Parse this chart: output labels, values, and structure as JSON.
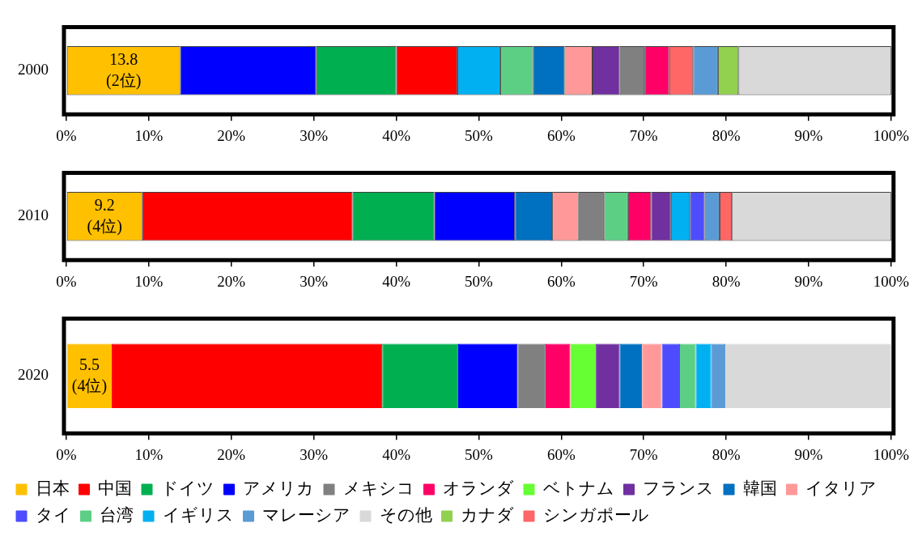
{
  "chart_data": [
    {
      "type": "bar",
      "orientation": "horizontal",
      "stacked": true,
      "categories": [
        "2000"
      ],
      "xlim": [
        0,
        100
      ],
      "xticks": [
        {
          "value": 0,
          "label": "0%"
        },
        {
          "value": 10,
          "label": "10%"
        },
        {
          "value": 20,
          "label": "20%"
        },
        {
          "value": 30,
          "label": "30%"
        },
        {
          "value": 40,
          "label": "40%"
        },
        {
          "value": 50,
          "label": "50%"
        },
        {
          "value": 60,
          "label": "60%"
        },
        {
          "value": 70,
          "label": "70%"
        },
        {
          "value": 80,
          "label": "80%"
        },
        {
          "value": 90,
          "label": "90%"
        },
        {
          "value": 100,
          "label": "100%"
        }
      ],
      "legend": false,
      "series": [
        {
          "color": "#ffc000",
          "values": [
            13.8
          ],
          "value_labels": [
            "13.8\n(2位)"
          ]
        },
        {
          "color": "#0000ff",
          "values": [
            16.5
          ]
        },
        {
          "color": "#00b050",
          "values": [
            9.7
          ]
        },
        {
          "color": "#ff0000",
          "values": [
            7.4
          ]
        },
        {
          "color": "#00b0f0",
          "values": [
            5.2
          ]
        },
        {
          "color": "#5ccf85",
          "values": [
            4.0
          ]
        },
        {
          "color": "#0070c0",
          "values": [
            3.8
          ]
        },
        {
          "color": "#ff9999",
          "values": [
            3.4
          ]
        },
        {
          "color": "#7030a0",
          "values": [
            3.3
          ]
        },
        {
          "color": "#808080",
          "values": [
            3.0
          ]
        },
        {
          "color": "#ff0066",
          "values": [
            3.0
          ]
        },
        {
          "color": "#ff6666",
          "values": [
            2.9
          ]
        },
        {
          "color": "#5b9bd5",
          "values": [
            3.0
          ]
        },
        {
          "color": "#92d050",
          "values": [
            2.5
          ]
        },
        {
          "color": "#d9d9d9",
          "values": [
            18.5
          ]
        }
      ]
    },
    {
      "type": "bar",
      "orientation": "horizontal",
      "stacked": true,
      "categories": [
        "2010"
      ],
      "xlim": [
        0,
        100
      ],
      "xticks": [
        {
          "value": 0,
          "label": "0%"
        },
        {
          "value": 10,
          "label": "10%"
        },
        {
          "value": 20,
          "label": "20%"
        },
        {
          "value": 30,
          "label": "30%"
        },
        {
          "value": 40,
          "label": "40%"
        },
        {
          "value": 50,
          "label": "50%"
        },
        {
          "value": 60,
          "label": "60%"
        },
        {
          "value": 70,
          "label": "70%"
        },
        {
          "value": 80,
          "label": "80%"
        },
        {
          "value": 90,
          "label": "90%"
        },
        {
          "value": 100,
          "label": "100%"
        }
      ],
      "legend": false,
      "series": [
        {
          "color": "#ffc000",
          "values": [
            9.2
          ],
          "value_labels": [
            "9.2\n(4位)"
          ]
        },
        {
          "color": "#ff0000",
          "values": [
            25.5
          ]
        },
        {
          "color": "#00b050",
          "values": [
            9.9
          ]
        },
        {
          "color": "#0000ff",
          "values": [
            9.8
          ]
        },
        {
          "color": "#0070c0",
          "values": [
            4.5
          ]
        },
        {
          "color": "#ff9999",
          "values": [
            3.2
          ]
        },
        {
          "color": "#808080",
          "values": [
            3.1
          ]
        },
        {
          "color": "#5ccf85",
          "values": [
            2.9
          ]
        },
        {
          "color": "#ff0066",
          "values": [
            2.8
          ]
        },
        {
          "color": "#7030a0",
          "values": [
            2.4
          ]
        },
        {
          "color": "#00b0f0",
          "values": [
            2.3
          ]
        },
        {
          "color": "#4d4dff",
          "values": [
            1.8
          ]
        },
        {
          "color": "#5b9bd5",
          "values": [
            1.8
          ]
        },
        {
          "color": "#ff6666",
          "values": [
            1.5
          ]
        },
        {
          "color": "#d9d9d9",
          "values": [
            19.3
          ]
        }
      ]
    },
    {
      "type": "bar",
      "orientation": "horizontal",
      "stacked": true,
      "categories": [
        "2020"
      ],
      "xlim": [
        0,
        100
      ],
      "xticks": [
        {
          "value": 0,
          "label": "0%"
        },
        {
          "value": 10,
          "label": "10%"
        },
        {
          "value": 20,
          "label": "20%"
        },
        {
          "value": 30,
          "label": "30%"
        },
        {
          "value": 40,
          "label": "40%"
        },
        {
          "value": 50,
          "label": "50%"
        },
        {
          "value": 60,
          "label": "60%"
        },
        {
          "value": 70,
          "label": "70%"
        },
        {
          "value": 80,
          "label": "80%"
        },
        {
          "value": 90,
          "label": "90%"
        },
        {
          "value": 100,
          "label": "100%"
        }
      ],
      "legend": "bottom",
      "series": [
        {
          "name": "日本",
          "color": "#ffc000",
          "values": [
            5.5
          ],
          "value_labels": [
            "5.5\n(4位)"
          ]
        },
        {
          "name": "中国",
          "color": "#ff0000",
          "values": [
            32.8
          ]
        },
        {
          "name": "ドイツ",
          "color": "#00b050",
          "values": [
            9.2
          ]
        },
        {
          "name": "アメリカ",
          "color": "#0000ff",
          "values": [
            7.2
          ]
        },
        {
          "name": "メキシコ",
          "color": "#808080",
          "values": [
            3.4
          ]
        },
        {
          "name": "オランダ",
          "color": "#ff0066",
          "values": [
            3.0
          ]
        },
        {
          "name": "ベトナム",
          "color": "#66ff33",
          "values": [
            3.1
          ]
        },
        {
          "name": "フランス",
          "color": "#7030a0",
          "values": [
            2.9
          ]
        },
        {
          "name": "韓国",
          "color": "#0070c0",
          "values": [
            2.7
          ]
        },
        {
          "name": "イタリア",
          "color": "#ff9999",
          "values": [
            2.4
          ]
        },
        {
          "name": "タイ",
          "color": "#4d4dff",
          "values": [
            2.2
          ]
        },
        {
          "name": "台湾",
          "color": "#5ccf85",
          "values": [
            1.9
          ]
        },
        {
          "name": "イギリス",
          "color": "#00b0f0",
          "values": [
            1.9
          ]
        },
        {
          "name": "マレーシア",
          "color": "#5b9bd5",
          "values": [
            1.7
          ]
        },
        {
          "name": "その他",
          "color": "#d9d9d9",
          "values": [
            20.1
          ]
        },
        {
          "name": "カナダ",
          "color": "#92d050",
          "values": [
            null
          ]
        },
        {
          "name": "シンガポール",
          "color": "#ff6666",
          "values": [
            null
          ]
        }
      ]
    }
  ]
}
